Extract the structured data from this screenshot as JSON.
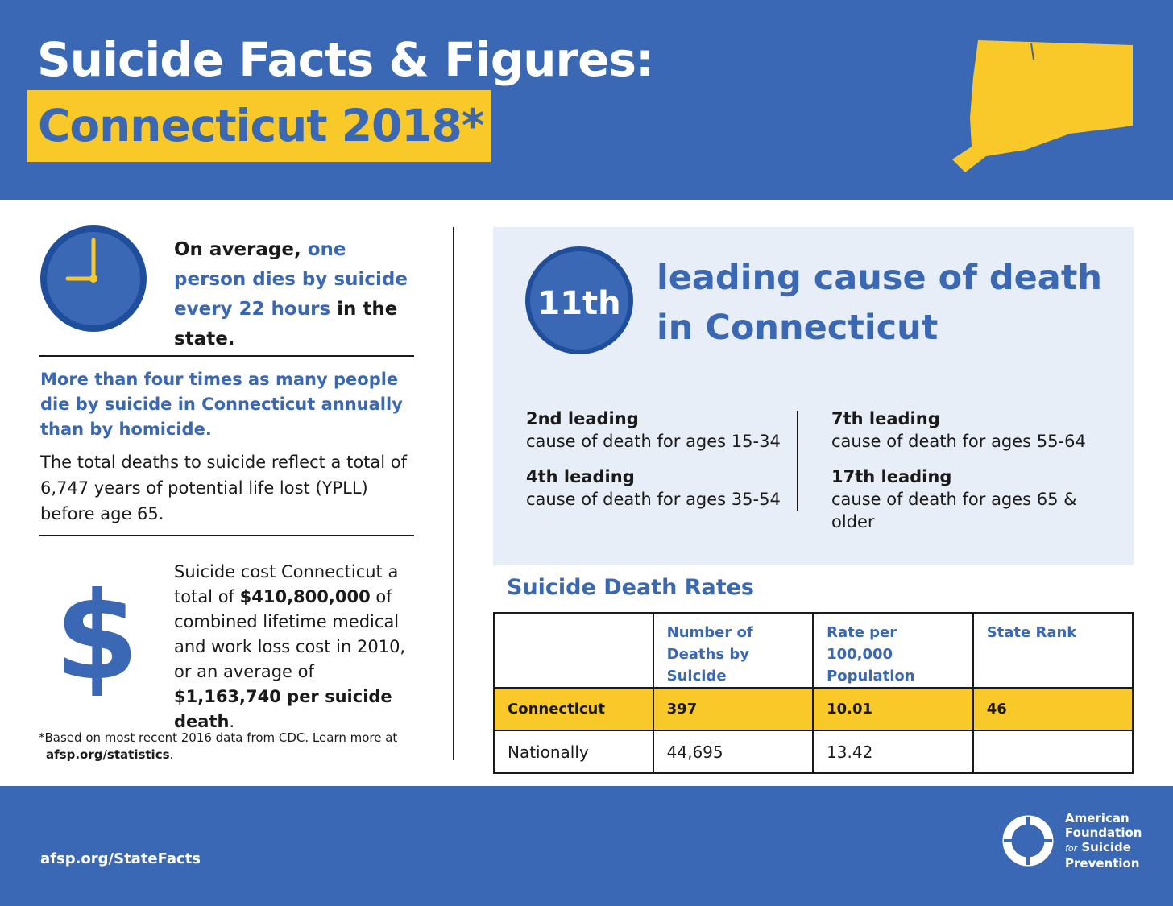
{
  "header": {
    "title": "Suicide Facts & Figures:",
    "subtitle": "Connecticut 2018*",
    "state_map_icon": "connecticut-state-shape-icon",
    "colors": {
      "brand_blue": "#3a68b4",
      "accent_yellow": "#f9c92a",
      "panel_bg": "#e8eef7"
    }
  },
  "left": {
    "clock_icon": "clock-icon",
    "fact1": {
      "part1": "On average, ",
      "highlight": "one person dies by suicide every 22 hours",
      "part2": " in the state."
    },
    "fact2": "More than four times as many people die by suicide in Connecticut annually than by homicide.",
    "fact3": "The total deaths to suicide reflect a total of 6,747 years of potential life lost (YPLL) before age 65.",
    "dollar_icon": "$",
    "fact4": {
      "p1": "Suicide cost Connecticut a total of ",
      "b1": "$410,800,000",
      "p2": " of combined lifetime medical and work loss cost in 2010, or an average of ",
      "b2": "$1,163,740 per suicide death",
      "p3": "."
    },
    "footnote": {
      "text": "*Based on most recent 2016 data from CDC. Learn more at",
      "link": "afsp.org/statistics",
      "end": "."
    }
  },
  "panel": {
    "rank": "11th",
    "rank_text_line1": "leading cause of death",
    "rank_text_line2": "in Connecticut",
    "ages": [
      {
        "head": "2nd leading",
        "sub": "cause of death for ages 15-34"
      },
      {
        "head": "4th leading",
        "sub": "cause of death for ages 35-54"
      },
      {
        "head": "7th leading",
        "sub": "cause of death for ages 55-64"
      },
      {
        "head": "17th leading",
        "sub": "cause of death for ages 65 & older"
      }
    ]
  },
  "rates": {
    "title": "Suicide Death Rates",
    "headers": [
      "",
      "Number of Deaths by Suicide",
      "Rate per 100,000 Population",
      "State Rank"
    ],
    "rows": [
      [
        "Connecticut",
        "397",
        "10.01",
        "46"
      ],
      [
        "Nationally",
        "44,695",
        "13.42",
        ""
      ]
    ]
  },
  "footer": {
    "link": "afsp.org/StateFacts",
    "logo_icon": "life-ring-icon",
    "logo_line1": "American",
    "logo_line2": "Foundation",
    "logo_for": "for",
    "logo_line3": "Suicide",
    "logo_line4": "Prevention"
  }
}
